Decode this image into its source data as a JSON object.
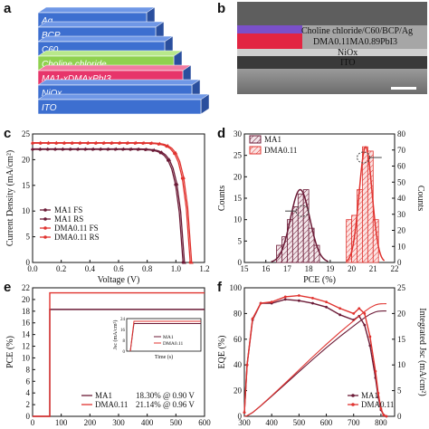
{
  "panels": {
    "a": {
      "label": "a",
      "layers": [
        "Ag",
        "BCP",
        "C60",
        "Choline chloride",
        "MA1-xDMAxPbI3",
        "NiOx",
        "ITO"
      ]
    },
    "b": {
      "label": "b",
      "lines": [
        "Choline chloride/C60/BCP/Ag",
        "DMA0.11MA0.89PbI3",
        "NiOx",
        "ITO"
      ]
    },
    "c": {
      "label": "c"
    },
    "d": {
      "label": "d"
    },
    "e": {
      "label": "e"
    },
    "f": {
      "label": "f"
    }
  },
  "colors": {
    "ma1": "#6b1a36",
    "dma": "#e0332f",
    "bg": "#ffffff"
  },
  "chart_data": [
    {
      "type": "line",
      "panel": "c",
      "xlabel": "Voltage (V)",
      "ylabel": "Current Density (mA/cm²)",
      "xlim": [
        0,
        1.2
      ],
      "ylim": [
        0,
        25
      ],
      "xticks": [
        0.0,
        0.2,
        0.4,
        0.6,
        0.8,
        1.0,
        1.2
      ],
      "yticks": [
        0,
        5,
        10,
        15,
        20,
        25
      ],
      "series": [
        {
          "name": "MA1  FS",
          "jsc": 22.0,
          "voc": 1.05
        },
        {
          "name": "MA1  RS",
          "jsc": 22.1,
          "voc": 1.06
        },
        {
          "name": "DMA0.11  FS",
          "jsc": 23.2,
          "voc": 1.1
        },
        {
          "name": "DMA0.11  RS",
          "jsc": 23.3,
          "voc": 1.11
        }
      ]
    },
    {
      "type": "bar",
      "panel": "d",
      "xlabel": "PCE (%)",
      "ylabel": "Counts",
      "y2label": "Counts",
      "xlim": [
        15,
        22
      ],
      "ylim": [
        0,
        30
      ],
      "y2lim": [
        0,
        80
      ],
      "xticks": [
        15,
        16,
        17,
        18,
        19,
        20,
        21,
        22
      ],
      "yticks": [
        0,
        5,
        10,
        15,
        20,
        25,
        30
      ],
      "y2ticks": [
        0,
        10,
        20,
        30,
        40,
        50,
        60,
        70,
        80
      ],
      "series": [
        {
          "name": "MA1",
          "bin_starts": [
            16.5,
            16.75,
            17.0,
            17.25,
            17.5,
            17.75,
            18.0,
            18.25
          ],
          "counts": [
            4,
            6,
            10,
            13,
            16,
            17,
            8,
            4
          ],
          "fit_mean": 17.6,
          "fit_sd": 0.45,
          "fit_peak": 17
        },
        {
          "name": "DMA0.11",
          "bin_starts": [
            19.75,
            20.0,
            20.25,
            20.5,
            20.75,
            21.0
          ],
          "counts": [
            10,
            11,
            17,
            27,
            26,
            10
          ],
          "fit_mean": 20.65,
          "fit_sd": 0.3,
          "fit_peak": 27
        }
      ]
    },
    {
      "type": "line",
      "panel": "e",
      "xlabel": "Time (s)",
      "ylabel": "PCE (%)",
      "xlim": [
        0,
        600
      ],
      "ylim": [
        0,
        22
      ],
      "xticks": [
        0,
        100,
        200,
        300,
        400,
        500,
        600
      ],
      "yticks": [
        0,
        2,
        4,
        6,
        8,
        10,
        12,
        14,
        16,
        18,
        20,
        22
      ],
      "series": [
        {
          "name": "MA1",
          "value": 18.3,
          "start": 60,
          "legend": "18.30% @ 0.90 V"
        },
        {
          "name": "DMA0.11",
          "value": 21.14,
          "start": 60,
          "legend": "21.14% @ 0.96 V"
        }
      ],
      "inset": {
        "xlabel": "Time (s)",
        "ylabel": "Jsc (mA/cm²)",
        "ylim": [
          0,
          24
        ],
        "yticks": [
          0,
          4,
          8,
          12,
          16,
          20,
          24
        ],
        "series": [
          {
            "name": "MA1",
            "value": 20.3
          },
          {
            "name": "DMA0.11",
            "value": 22.0
          }
        ]
      }
    },
    {
      "type": "line",
      "panel": "f",
      "xlabel": "Wavelength (nm)",
      "ylabel": "EQE (%)",
      "y2label": "Integrated Jsc (mA/cm²)",
      "xlim": [
        300,
        850
      ],
      "ylim": [
        0,
        100
      ],
      "y2lim": [
        0,
        25
      ],
      "xticks": [
        300,
        400,
        500,
        600,
        700,
        800
      ],
      "yticks": [
        0,
        20,
        40,
        60,
        80,
        100
      ],
      "y2ticks": [
        0,
        5,
        10,
        15,
        20,
        25
      ],
      "series": [
        {
          "name": "MA1",
          "x": [
            300,
            310,
            330,
            360,
            400,
            450,
            500,
            550,
            600,
            650,
            700,
            720,
            740,
            760,
            780,
            790,
            800,
            810,
            820
          ],
          "y": [
            3,
            40,
            75,
            88,
            88,
            91,
            90,
            88,
            85,
            79,
            75,
            78,
            71,
            55,
            30,
            15,
            5,
            1,
            0
          ],
          "integrated_jsc": 20.5
        },
        {
          "name": "DMA0.11",
          "x": [
            300,
            310,
            330,
            360,
            400,
            450,
            500,
            550,
            600,
            650,
            700,
            720,
            740,
            760,
            780,
            790,
            800,
            810,
            820
          ],
          "y": [
            3,
            40,
            76,
            88,
            89,
            93,
            94,
            92,
            89,
            84,
            80,
            84,
            80,
            62,
            35,
            18,
            6,
            1,
            0
          ],
          "integrated_jsc": 21.9
        }
      ]
    }
  ]
}
